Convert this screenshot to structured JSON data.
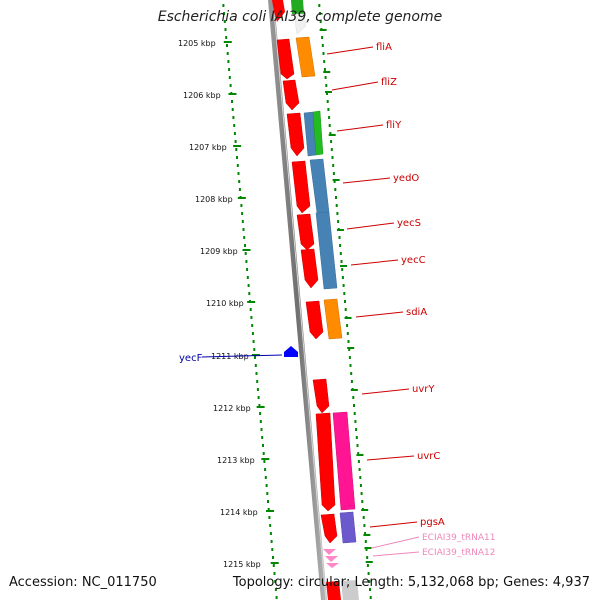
{
  "title": "Escherichia coli IAI39, complete genome",
  "footer": {
    "accession": "Accession: NC_011750",
    "summary": "Topology: circular; Length: 5,132,068 bp; Genes: 4,937"
  },
  "kbp_labels": [
    "1205 kbp",
    "1206 kbp",
    "1207 kbp",
    "1208 kbp",
    "1209 kbp",
    "1210 kbp",
    "1211 kbp",
    "1212 kbp",
    "1213 kbp",
    "1214 kbp",
    "1215 kbp"
  ],
  "gene_labels": [
    {
      "text": "fliA",
      "color": "#cc0000"
    },
    {
      "text": "fliZ",
      "color": "#cc0000"
    },
    {
      "text": "fliY",
      "color": "#cc0000"
    },
    {
      "text": "yedO",
      "color": "#cc0000"
    },
    {
      "text": "yecS",
      "color": "#cc0000"
    },
    {
      "text": "yecC",
      "color": "#cc0000"
    },
    {
      "text": "sdiA",
      "color": "#cc0000"
    },
    {
      "text": "uvrY",
      "color": "#cc0000"
    },
    {
      "text": "uvrC",
      "color": "#cc0000"
    },
    {
      "text": "pgsA",
      "color": "#cc0000"
    },
    {
      "text": "ECIAI39_tRNA11",
      "color": "#ee88bb"
    },
    {
      "text": "ECIAI39_tRNA12",
      "color": "#ee88bb"
    }
  ],
  "left_gene_label": {
    "text": "yecF",
    "color": "#0000aa"
  },
  "colors": {
    "cds": "#ff0000",
    "orange": "#ff8c00",
    "steelblue": "#4682b4",
    "green": "#22bb22",
    "magenta": "#ff1493",
    "purple": "#6a5acd",
    "trna": "#ff88c8",
    "dots": "#008800",
    "backbone": "#808080",
    "blue_gene": "#0000ff"
  }
}
